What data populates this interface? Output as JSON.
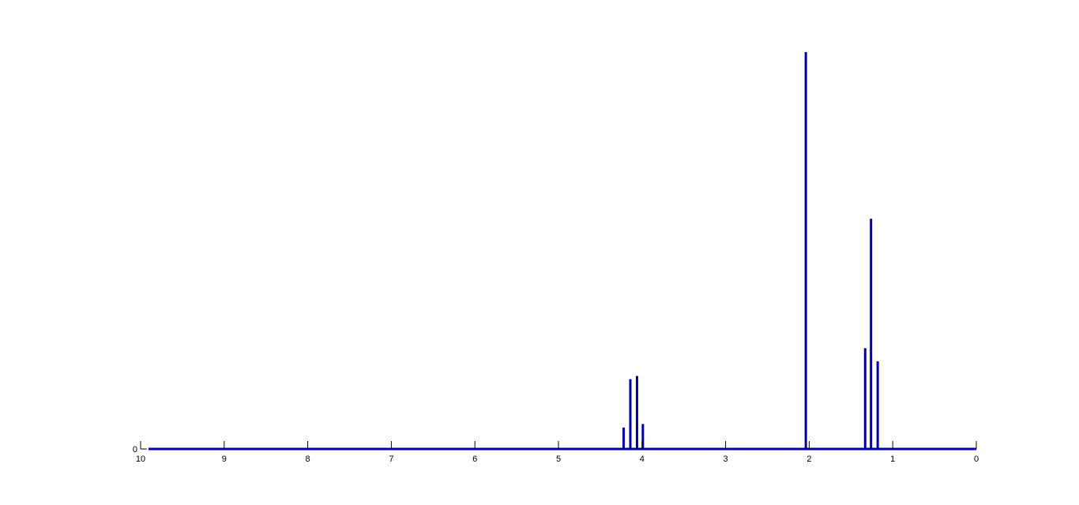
{
  "chart_data": {
    "type": "bar",
    "title": "",
    "xlabel": "",
    "ylabel": "",
    "x_reversed": true,
    "xlim": [
      0,
      10
    ],
    "ylim": [
      0,
      1
    ],
    "x_ticks": [
      10,
      9,
      8,
      7,
      6,
      5,
      4,
      3,
      2,
      1,
      0
    ],
    "x_tick_labels": [
      "10",
      "9",
      "8",
      "7",
      "6",
      "5",
      "4",
      "3",
      "2",
      "1",
      "0"
    ],
    "y_ticks": [
      0
    ],
    "y_tick_labels": [
      "0"
    ],
    "grid": false,
    "legend": "none",
    "series_color": "#0000a8",
    "baseline_color": "#0000a8",
    "x": [
      4.22,
      4.14,
      4.06,
      3.99,
      2.04,
      1.33,
      1.26,
      1.18
    ],
    "values": [
      0.054,
      0.176,
      0.184,
      0.063,
      1.0,
      0.254,
      0.58,
      0.221
    ]
  }
}
